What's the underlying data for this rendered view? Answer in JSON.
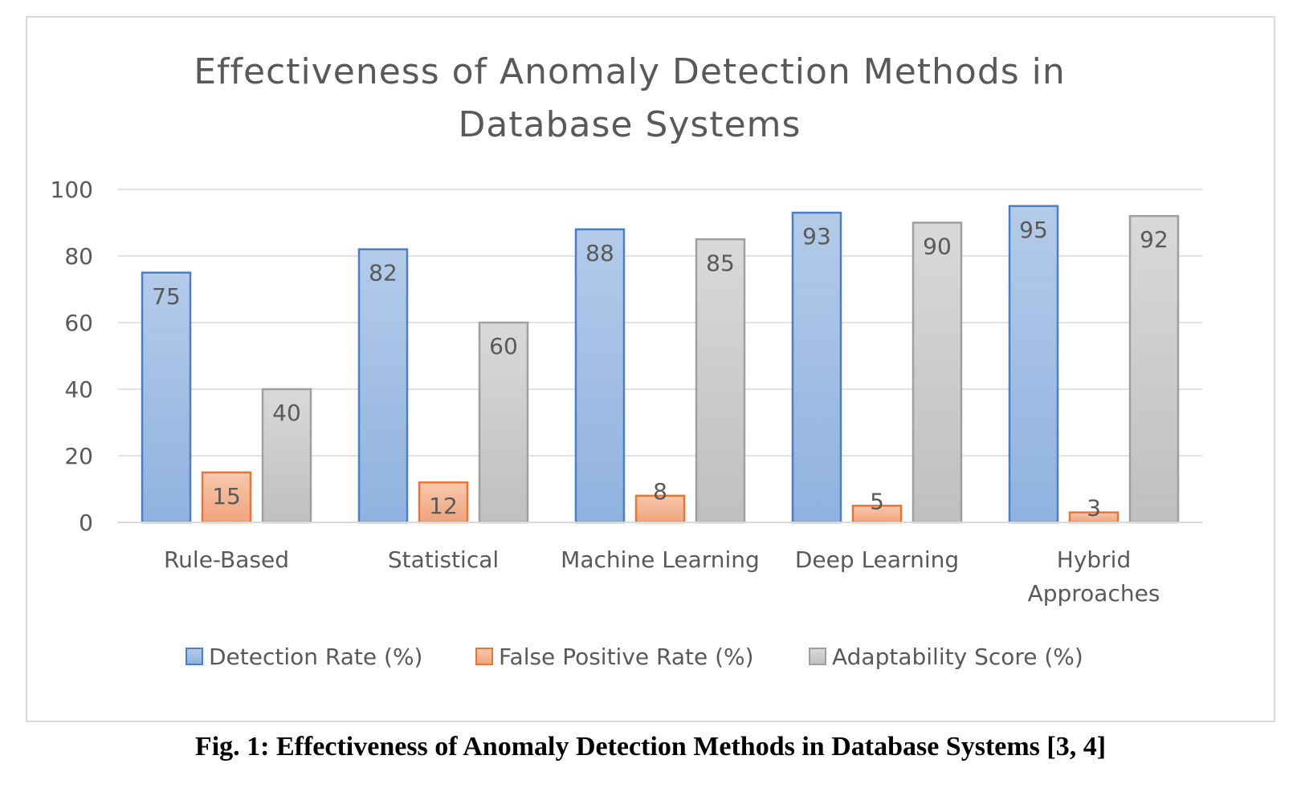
{
  "caption": "Fig. 1: Effectiveness of Anomaly Detection Methods in Database Systems [3, 4]",
  "chart_data": {
    "type": "bar",
    "title_lines": [
      "Effectiveness of Anomaly Detection Methods in",
      "Database Systems"
    ],
    "categories": [
      [
        "Rule-Based"
      ],
      [
        "Statistical"
      ],
      [
        "Machine Learning"
      ],
      [
        "Deep Learning"
      ],
      [
        "Hybrid",
        "Approaches"
      ]
    ],
    "series": [
      {
        "name": "Detection Rate (%)",
        "values": [
          75,
          82,
          88,
          93,
          95
        ],
        "fill_top": "#b4cbe9",
        "fill_bottom": "#8fb2df",
        "stroke": "#4a7fc8"
      },
      {
        "name": "False Positive Rate (%)",
        "values": [
          15,
          12,
          8,
          5,
          3
        ],
        "fill_top": "#f8c8ac",
        "fill_bottom": "#f0a37c",
        "stroke": "#ea7534"
      },
      {
        "name": "Adaptability Score (%)",
        "values": [
          40,
          60,
          85,
          90,
          92
        ],
        "fill_top": "#d9d9d9",
        "fill_bottom": "#bfbfbf",
        "stroke": "#9f9f9f"
      }
    ],
    "ylim": [
      0,
      100
    ],
    "yticks": [
      0,
      20,
      40,
      60,
      80,
      100
    ],
    "grid": true,
    "legend_position": "bottom",
    "gridline_color": "#d9d9d9",
    "text_color": "#595959"
  }
}
